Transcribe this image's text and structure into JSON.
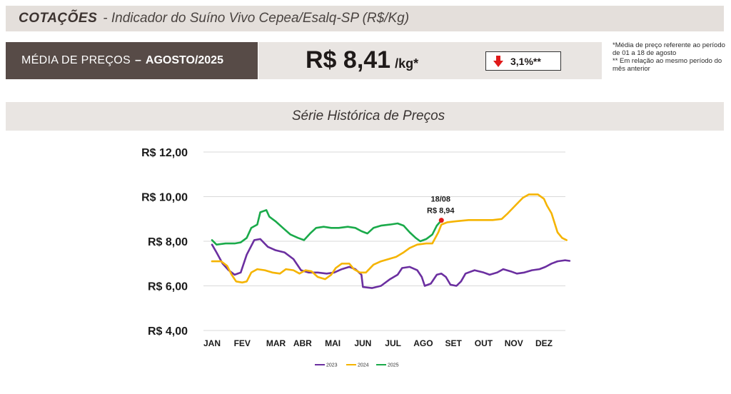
{
  "header": {
    "title_bold": "COTAÇÕES",
    "title_rest": "-  Indicador do Suíno Vivo Cepea/Esalq-SP (R$/Kg)"
  },
  "price_panel": {
    "label": "MÉDIA DE PREÇOS",
    "dash": "–",
    "month": "AGOSTO/2025",
    "value": "R$ 8,41",
    "unit": "/kg*",
    "change": "3,1%**",
    "change_direction": "down",
    "change_color": "#e01a1a"
  },
  "notes": {
    "line1": "*Média de preço referente ao período de 01 a 18 de agosto",
    "line2": "** Em relação ao mesmo período do mês anterior"
  },
  "series_title": "Série Histórica de Preços",
  "chart_data": {
    "type": "line",
    "categories": [
      "JAN",
      "FEV",
      "MAR",
      "ABR",
      "MAI",
      "JUN",
      "JUL",
      "AGO",
      "SET",
      "OUT",
      "NOV",
      "DEZ"
    ],
    "y_tick_labels": [
      "R$ 12,00",
      "R$ 10,00",
      "R$ 8,00",
      "R$ 6,00",
      "R$ 4,00"
    ],
    "ylim": [
      4,
      12
    ],
    "y_ticks": [
      4,
      6,
      8,
      10,
      12
    ],
    "grid": true,
    "legend_position": "bottom",
    "annotation": {
      "date": "18/08",
      "label": "R$ 8,94",
      "month_index": 7.6,
      "value": 8.94,
      "color": "#e01a1a"
    },
    "series": [
      {
        "name": "2023",
        "color": "#6b2fa0",
        "points": [
          [
            0,
            7.85
          ],
          [
            0.15,
            7.5
          ],
          [
            0.35,
            7.0
          ],
          [
            0.55,
            6.7
          ],
          [
            0.75,
            6.5
          ],
          [
            0.95,
            6.6
          ],
          [
            1.15,
            7.4
          ],
          [
            1.4,
            8.05
          ],
          [
            1.6,
            8.1
          ],
          [
            1.85,
            7.75
          ],
          [
            2.1,
            7.6
          ],
          [
            2.4,
            7.5
          ],
          [
            2.7,
            7.2
          ],
          [
            2.95,
            6.7
          ],
          [
            3.2,
            6.6
          ],
          [
            3.5,
            6.6
          ],
          [
            3.8,
            6.55
          ],
          [
            4.05,
            6.6
          ],
          [
            4.3,
            6.75
          ],
          [
            4.55,
            6.85
          ],
          [
            4.75,
            6.75
          ],
          [
            4.95,
            6.5
          ],
          [
            5.0,
            5.95
          ],
          [
            5.3,
            5.9
          ],
          [
            5.6,
            6.0
          ],
          [
            5.9,
            6.3
          ],
          [
            6.15,
            6.5
          ],
          [
            6.3,
            6.8
          ],
          [
            6.55,
            6.85
          ],
          [
            6.8,
            6.7
          ],
          [
            6.95,
            6.4
          ],
          [
            7.05,
            6.0
          ],
          [
            7.25,
            6.1
          ],
          [
            7.45,
            6.5
          ],
          [
            7.6,
            6.55
          ],
          [
            7.75,
            6.4
          ],
          [
            7.9,
            6.05
          ],
          [
            8.1,
            6.0
          ],
          [
            8.25,
            6.2
          ],
          [
            8.4,
            6.55
          ],
          [
            8.7,
            6.7
          ],
          [
            9.0,
            6.6
          ],
          [
            9.2,
            6.5
          ],
          [
            9.45,
            6.6
          ],
          [
            9.65,
            6.75
          ],
          [
            9.9,
            6.65
          ],
          [
            10.1,
            6.55
          ],
          [
            10.35,
            6.6
          ],
          [
            10.6,
            6.7
          ],
          [
            10.85,
            6.75
          ],
          [
            11.05,
            6.85
          ],
          [
            11.25,
            7.0
          ],
          [
            11.45,
            7.1
          ],
          [
            11.7,
            7.15
          ],
          [
            11.85,
            7.12
          ]
        ]
      },
      {
        "name": "2024",
        "color": "#f5b400",
        "points": [
          [
            0,
            7.1
          ],
          [
            0.3,
            7.1
          ],
          [
            0.5,
            6.9
          ],
          [
            0.65,
            6.5
          ],
          [
            0.8,
            6.2
          ],
          [
            1.0,
            6.15
          ],
          [
            1.15,
            6.2
          ],
          [
            1.3,
            6.6
          ],
          [
            1.5,
            6.75
          ],
          [
            1.75,
            6.7
          ],
          [
            2.0,
            6.6
          ],
          [
            2.25,
            6.55
          ],
          [
            2.45,
            6.75
          ],
          [
            2.7,
            6.7
          ],
          [
            2.9,
            6.55
          ],
          [
            3.1,
            6.7
          ],
          [
            3.3,
            6.65
          ],
          [
            3.5,
            6.4
          ],
          [
            3.75,
            6.3
          ],
          [
            3.95,
            6.5
          ],
          [
            4.1,
            6.8
          ],
          [
            4.3,
            7.0
          ],
          [
            4.55,
            7.0
          ],
          [
            4.7,
            6.75
          ],
          [
            4.9,
            6.6
          ],
          [
            5.1,
            6.6
          ],
          [
            5.35,
            6.95
          ],
          [
            5.6,
            7.1
          ],
          [
            5.85,
            7.2
          ],
          [
            6.1,
            7.3
          ],
          [
            6.35,
            7.5
          ],
          [
            6.55,
            7.7
          ],
          [
            6.8,
            7.85
          ],
          [
            7.1,
            7.9
          ],
          [
            7.3,
            7.9
          ],
          [
            7.5,
            8.4
          ],
          [
            7.6,
            8.75
          ],
          [
            7.8,
            8.85
          ],
          [
            8.1,
            8.9
          ],
          [
            8.5,
            8.95
          ],
          [
            9.0,
            8.95
          ],
          [
            9.3,
            8.95
          ],
          [
            9.6,
            9.0
          ],
          [
            9.8,
            9.25
          ],
          [
            10.05,
            9.6
          ],
          [
            10.3,
            9.95
          ],
          [
            10.5,
            10.1
          ],
          [
            10.8,
            10.1
          ],
          [
            11.0,
            9.9
          ],
          [
            11.1,
            9.6
          ],
          [
            11.25,
            9.25
          ],
          [
            11.45,
            8.4
          ],
          [
            11.6,
            8.15
          ],
          [
            11.75,
            8.05
          ]
        ]
      },
      {
        "name": "2025",
        "color": "#1aaa4a",
        "points": [
          [
            0,
            8.05
          ],
          [
            0.15,
            7.85
          ],
          [
            0.45,
            7.9
          ],
          [
            0.75,
            7.9
          ],
          [
            0.95,
            7.95
          ],
          [
            1.15,
            8.15
          ],
          [
            1.3,
            8.6
          ],
          [
            1.5,
            8.75
          ],
          [
            1.6,
            9.3
          ],
          [
            1.8,
            9.4
          ],
          [
            1.9,
            9.1
          ],
          [
            2.1,
            8.9
          ],
          [
            2.35,
            8.6
          ],
          [
            2.6,
            8.3
          ],
          [
            2.85,
            8.15
          ],
          [
            3.05,
            8.05
          ],
          [
            3.25,
            8.35
          ],
          [
            3.45,
            8.6
          ],
          [
            3.7,
            8.65
          ],
          [
            3.95,
            8.6
          ],
          [
            4.2,
            8.6
          ],
          [
            4.5,
            8.65
          ],
          [
            4.75,
            8.6
          ],
          [
            4.95,
            8.45
          ],
          [
            5.15,
            8.35
          ],
          [
            5.35,
            8.6
          ],
          [
            5.6,
            8.7
          ],
          [
            5.9,
            8.75
          ],
          [
            6.15,
            8.8
          ],
          [
            6.35,
            8.7
          ],
          [
            6.55,
            8.4
          ],
          [
            6.75,
            8.15
          ],
          [
            6.9,
            8.0
          ],
          [
            7.1,
            8.1
          ],
          [
            7.3,
            8.3
          ],
          [
            7.45,
            8.7
          ],
          [
            7.6,
            8.94
          ]
        ]
      }
    ]
  }
}
